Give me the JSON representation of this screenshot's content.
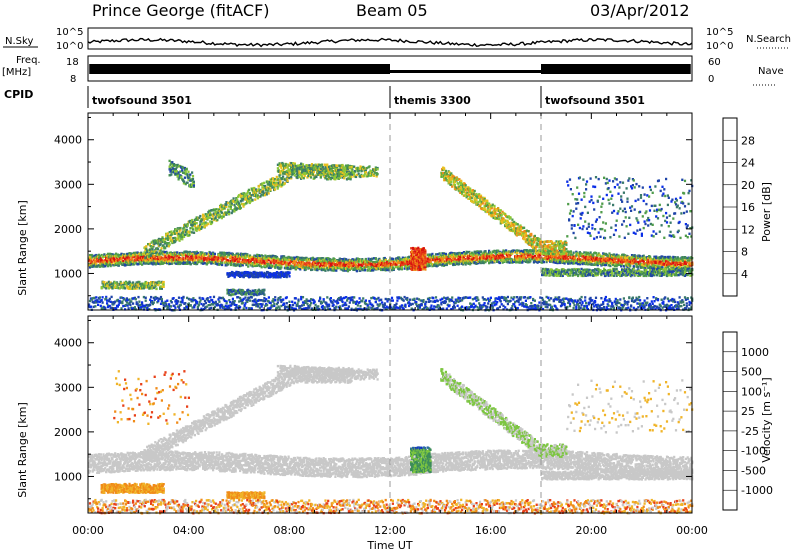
{
  "header": {
    "station": "Prince George (fitACF)",
    "beam": "Beam 05",
    "date": "03/Apr/2012"
  },
  "strips": {
    "nsky_label": "N.Sky",
    "nsearch_label": "N.Search",
    "nsky_top": "10^5",
    "nsky_bottom": "10^0",
    "nsearch_top": "10^5",
    "nsearch_bottom": "10^0",
    "freq_label": "Freq.",
    "freq_unit": "[MHz]",
    "freq_top": "18",
    "freq_bottom": "8",
    "nave_label": "Nave",
    "nave_top": "60",
    "nave_bottom": "0",
    "cpid_label": "CPID",
    "cpid_segments": [
      {
        "label": "twofsound 3501",
        "start_hour": 0,
        "end_hour": 12
      },
      {
        "label": "themis 3300",
        "start_hour": 12,
        "end_hour": 18
      },
      {
        "label": "twofsound 3501",
        "start_hour": 18,
        "end_hour": 24
      }
    ]
  },
  "axes": {
    "xlabel": "Time UT",
    "x_ticks": [
      "00:00",
      "04:00",
      "08:00",
      "12:00",
      "16:00",
      "20:00",
      "00:00"
    ],
    "x_range_hours": [
      0,
      24
    ],
    "ylabel": "Slant Range [km]",
    "y_ticks": [
      "1000",
      "2000",
      "3000",
      "4000"
    ],
    "y_range_km": [
      180,
      4600
    ],
    "dashed_lines_hours": [
      12,
      18
    ]
  },
  "power_scale": {
    "label": "Power [dB]",
    "ticks": [
      "4",
      "8",
      "12",
      "16",
      "20",
      "24",
      "28"
    ],
    "colors": [
      "#0a2ee8",
      "#1f44a8",
      "#3a7a6a",
      "#4f9c4a",
      "#8cc838",
      "#e8c020",
      "#f08a18",
      "#e84018",
      "#d81010"
    ]
  },
  "velocity_scale": {
    "label": "Velocity [m s⁻¹]",
    "ticks": [
      "1000",
      "500",
      "100",
      "25",
      "-25",
      "-100",
      "-500",
      "-1000"
    ],
    "colors": [
      "#1030c8",
      "#2a6aa8",
      "#3c8c5a",
      "#7cc640",
      "#c8c8c8",
      "#f0b428",
      "#f08a18",
      "#e84018",
      "#d81010"
    ]
  },
  "chart_data": [
    {
      "type": "heatmap",
      "title": "Power",
      "xlabel": "Time UT",
      "ylabel": "Slant Range [km]",
      "x_range": [
        0,
        24
      ],
      "y_range": [
        180,
        4600
      ],
      "colorbar": "Power [dB]",
      "colorbar_ticks": [
        4,
        8,
        12,
        16,
        20,
        24,
        28
      ],
      "features": [
        {
          "name": "main band",
          "hours": [
            0,
            24
          ],
          "range_km_start": 1300,
          "range_km_end": 1350,
          "peak_power_db": 28
        },
        {
          "name": "rising arc",
          "hours": [
            2,
            10
          ],
          "range_km_start": 1500,
          "range_km_end": 3300,
          "power_db": 14
        },
        {
          "name": "burst",
          "hours": [
            13,
            13.5
          ],
          "range_km": [
            1050,
            1700
          ],
          "power_db": 28
        },
        {
          "name": "descending arc",
          "hours": [
            14,
            19
          ],
          "range_km_start": 3300,
          "range_km_end": 1600,
          "power_db": 20
        }
      ]
    },
    {
      "type": "heatmap",
      "title": "Velocity",
      "xlabel": "Time UT",
      "ylabel": "Slant Range [km]",
      "x_range": [
        0,
        24
      ],
      "y_range": [
        180,
        4600
      ],
      "colorbar": "Velocity [m s^-1]",
      "colorbar_ticks": [
        1000,
        500,
        100,
        25,
        -25,
        -100,
        -500,
        -1000
      ],
      "features": [
        {
          "name": "ground scatter band",
          "hours": [
            0,
            24
          ],
          "range_km": [
            1200,
            1600
          ],
          "velocity_ms": 0
        },
        {
          "name": "low-range echoes",
          "hours": [
            0.5,
            7
          ],
          "range_km": [
            600,
            900
          ],
          "velocity_ms": -500
        },
        {
          "name": "burst",
          "hours": [
            13,
            13.5
          ],
          "range_km": [
            1050,
            1700
          ],
          "velocity_ms": 500
        }
      ]
    }
  ]
}
